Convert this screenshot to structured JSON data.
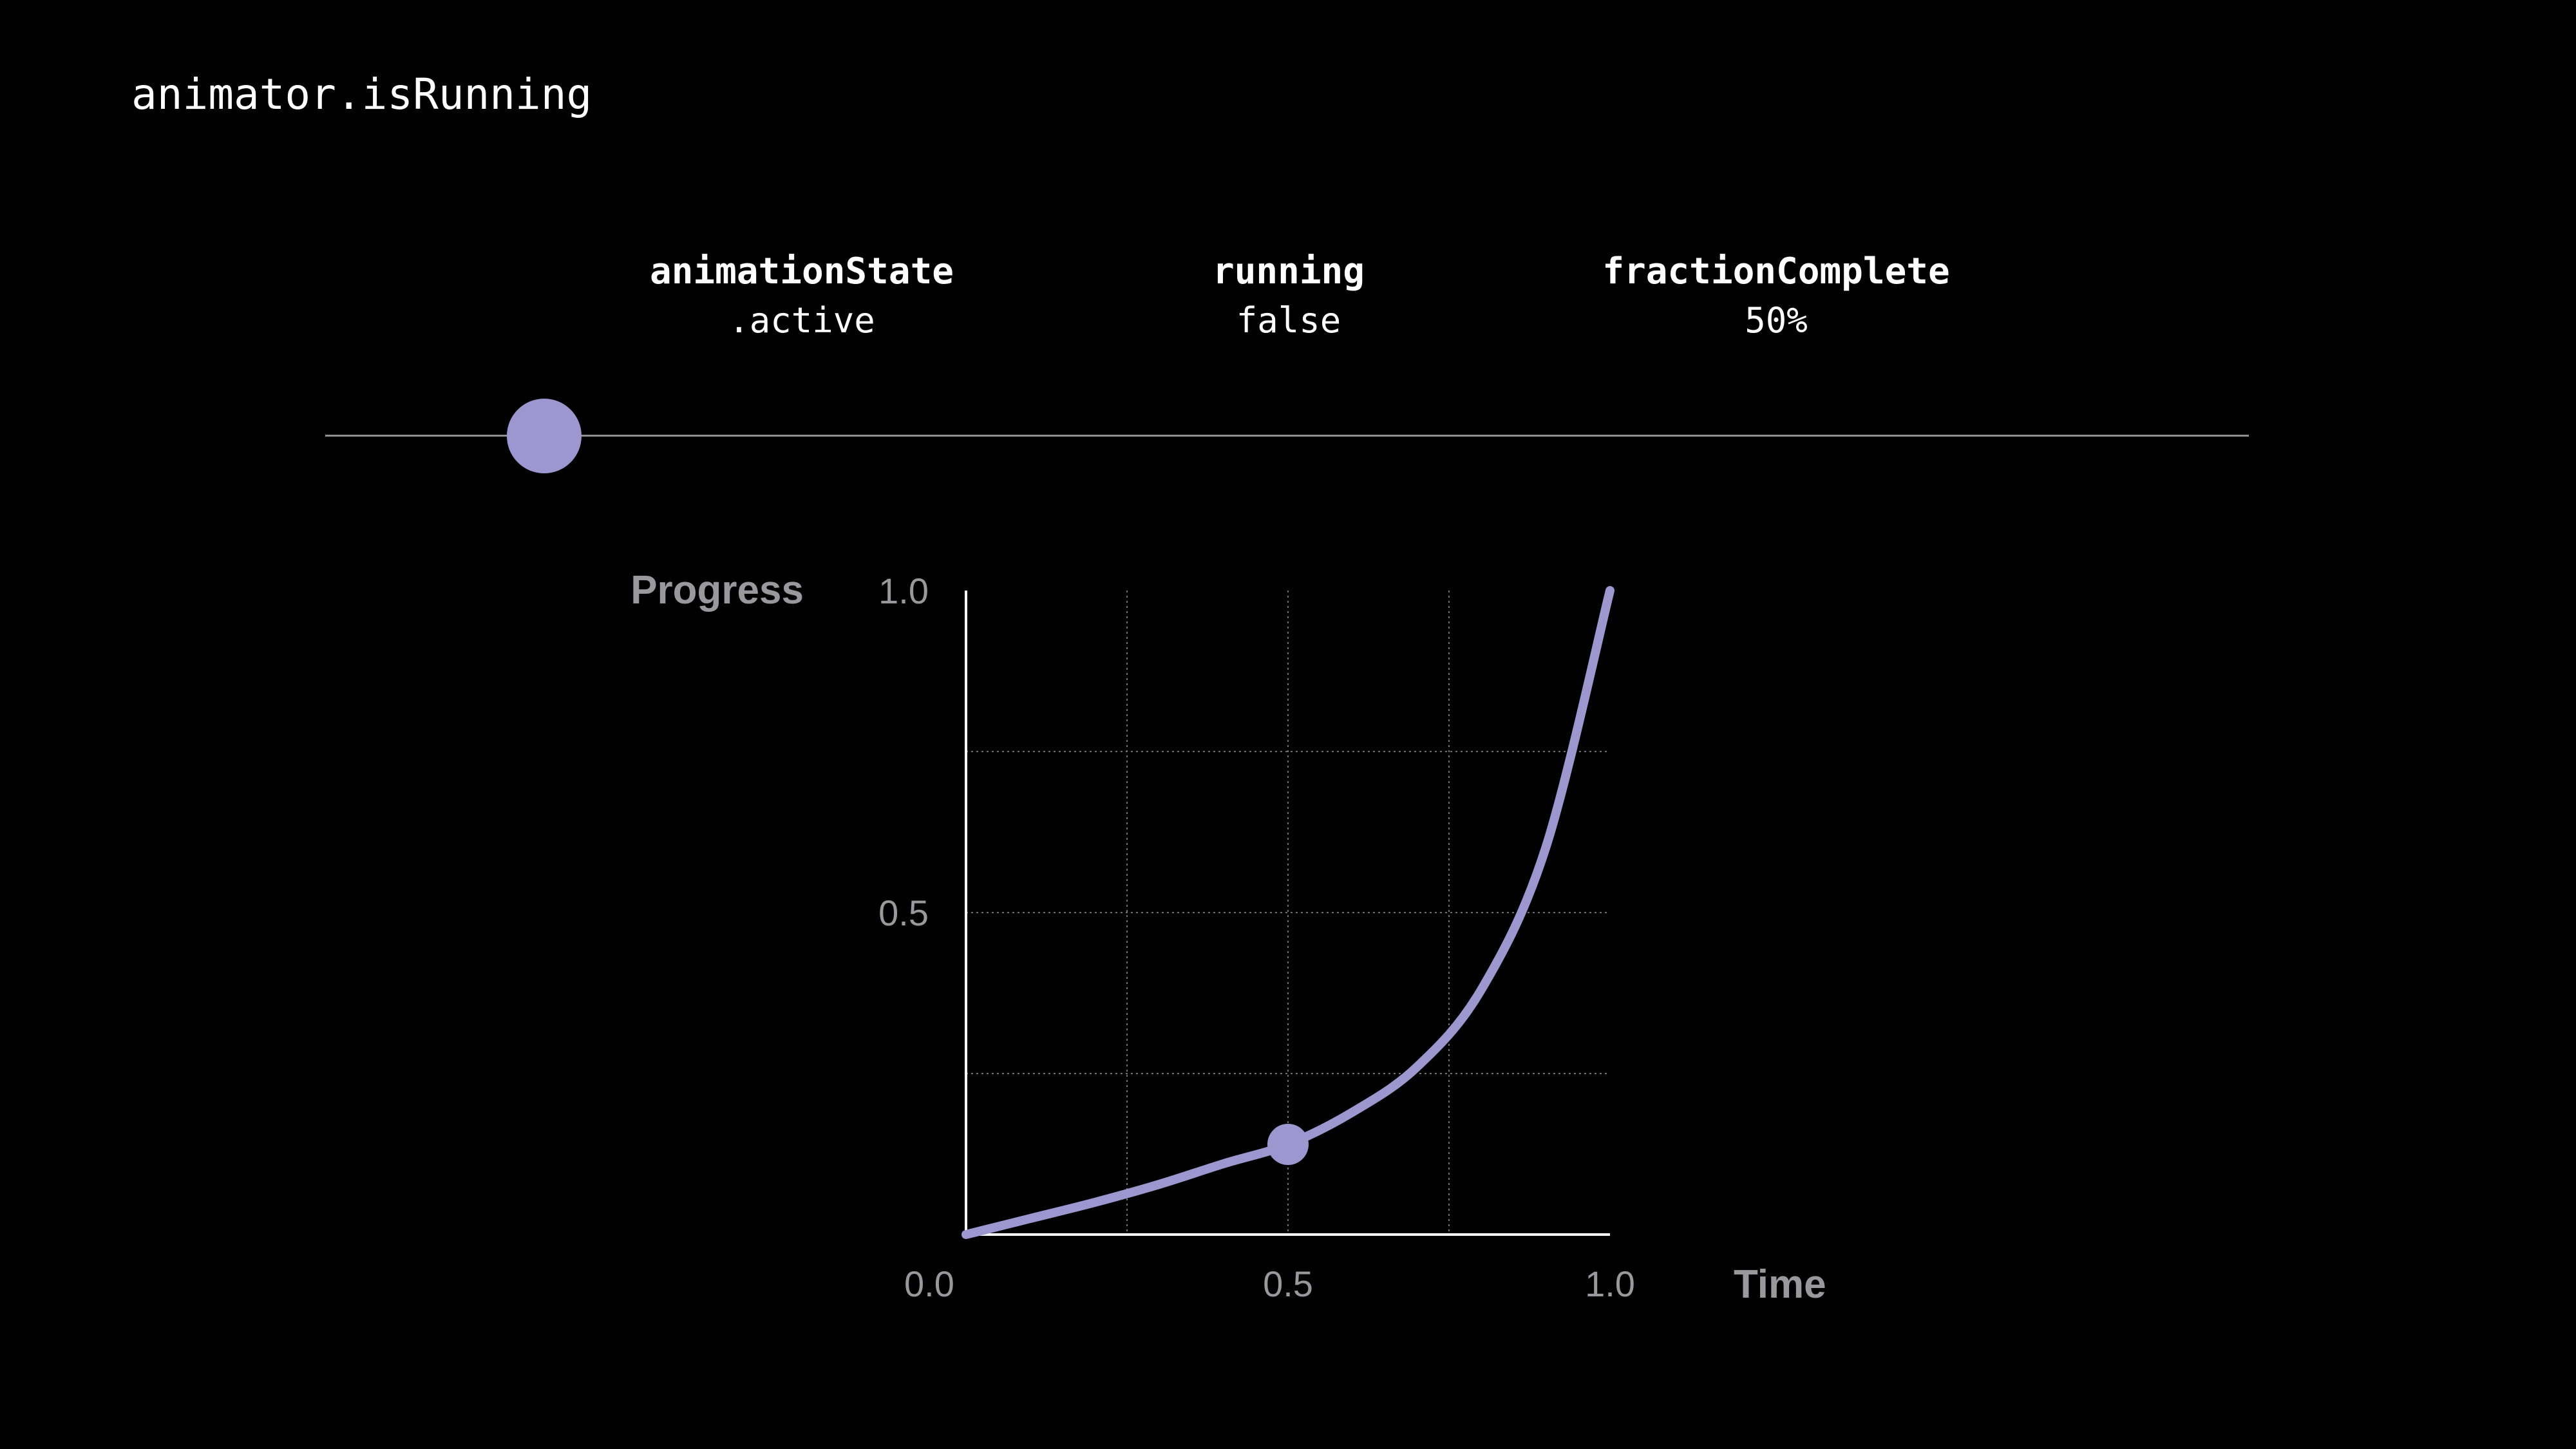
{
  "slide": {
    "title": "animator.isRunning"
  },
  "state": {
    "animation_state": {
      "label": "animationState",
      "value": ".active"
    },
    "running": {
      "label": "running",
      "value": "false"
    },
    "fraction_complete": {
      "label": "fractionComplete",
      "value": "50%"
    }
  },
  "scrubber": {
    "progress": 0.12
  },
  "colors": {
    "accent": "#9d97cf",
    "background": "#000000",
    "axis": "#ffffff",
    "grid": "#6e6e73",
    "label": "#98989d"
  },
  "chart_data": {
    "type": "line",
    "xlabel": "Time",
    "ylabel": "Progress",
    "xlim": [
      0,
      1
    ],
    "ylim": [
      0,
      1
    ],
    "x_ticks": [
      {
        "value": 0.0,
        "label": "0.0"
      },
      {
        "value": 0.5,
        "label": "0.5"
      },
      {
        "value": 1.0,
        "label": "1.0"
      }
    ],
    "y_ticks": [
      {
        "value": 0.5,
        "label": "0.5"
      },
      {
        "value": 1.0,
        "label": "1.0"
      }
    ],
    "grid": true,
    "grid_x": [
      0.25,
      0.5,
      0.75
    ],
    "grid_y": [
      0.25,
      0.5,
      0.75
    ],
    "series": [
      {
        "points": [
          [
            0.0,
            0.0
          ],
          [
            0.1,
            0.025
          ],
          [
            0.2,
            0.05
          ],
          [
            0.3,
            0.078
          ],
          [
            0.4,
            0.11
          ],
          [
            0.5,
            0.14
          ],
          [
            0.6,
            0.19
          ],
          [
            0.7,
            0.26
          ],
          [
            0.8,
            0.38
          ],
          [
            0.9,
            0.6
          ],
          [
            1.0,
            1.0
          ]
        ]
      }
    ],
    "marker": {
      "x": 0.5,
      "y": 0.14
    }
  }
}
